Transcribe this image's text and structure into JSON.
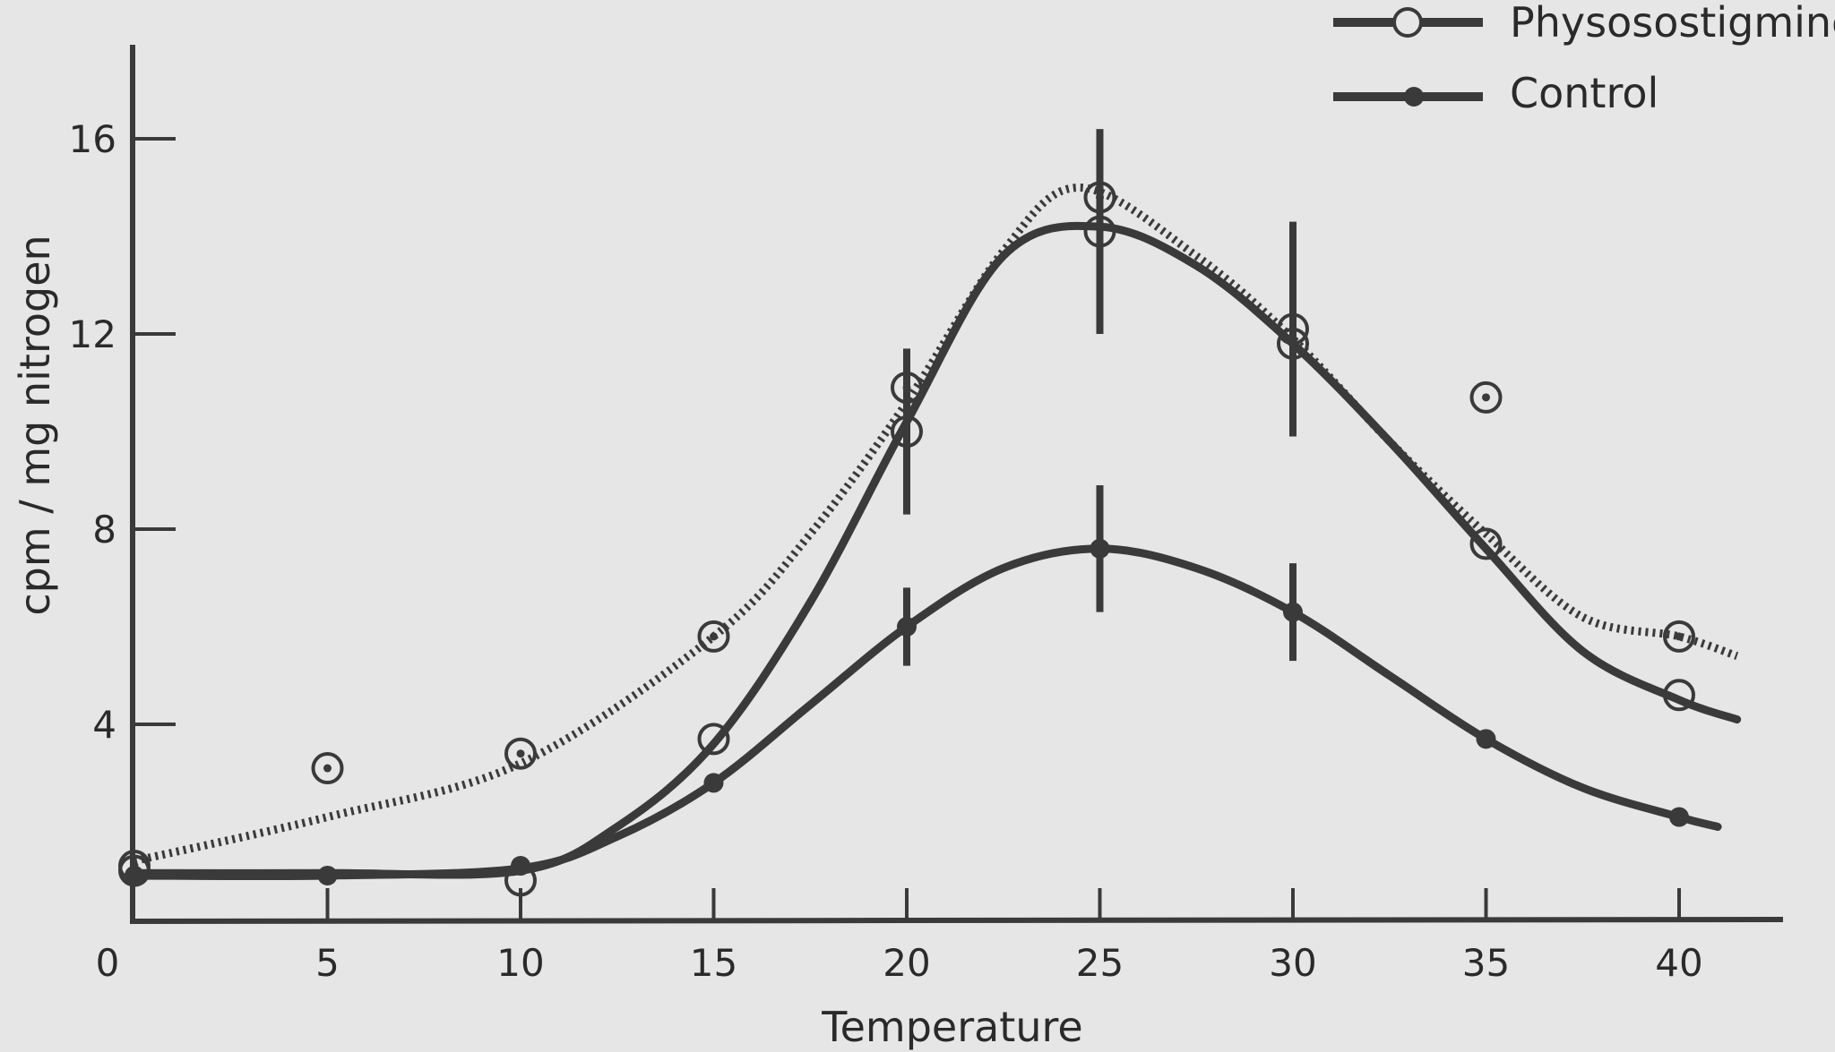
{
  "chart_data": {
    "type": "line",
    "xlabel": "Temperature",
    "ylabel": "cpm / mg nitrogen",
    "xlim": [
      0,
      42
    ],
    "ylim": [
      0,
      18
    ],
    "x_ticks": [
      "0",
      "5",
      "10",
      "15",
      "20",
      "25",
      "30",
      "35",
      "40"
    ],
    "y_ticks": [
      "4",
      "8",
      "12",
      "16"
    ],
    "legend": {
      "placement": "top-right",
      "entries": [
        "Physosostigmine",
        "Control"
      ]
    },
    "grid": false,
    "series": [
      {
        "name": "Physosostigmine",
        "style": "solid-open-circle",
        "x": [
          0,
          10,
          15,
          20,
          25,
          30,
          35,
          40
        ],
        "y": [
          1.0,
          0.8,
          3.7,
          10.0,
          14.1,
          12.1,
          7.7,
          4.6
        ],
        "err": [
          0,
          0,
          0,
          1.7,
          2.1,
          2.2,
          0,
          0
        ]
      },
      {
        "name": "",
        "style": "dotted-dotted-circle",
        "x": [
          0,
          5,
          10,
          15,
          20,
          25,
          30,
          35,
          40
        ],
        "y": [
          1.1,
          3.1,
          3.4,
          5.8,
          10.9,
          14.8,
          11.8,
          10.7,
          5.8
        ]
      },
      {
        "name": "Control",
        "style": "solid-filled-dot",
        "x": [
          0,
          5,
          10,
          15,
          20,
          25,
          30,
          35,
          40
        ],
        "y": [
          0.9,
          0.9,
          1.1,
          2.8,
          6.0,
          7.6,
          6.3,
          3.7,
          2.1
        ],
        "err": [
          0,
          0,
          0,
          0,
          0.8,
          1.3,
          1.0,
          0,
          0
        ]
      }
    ]
  }
}
